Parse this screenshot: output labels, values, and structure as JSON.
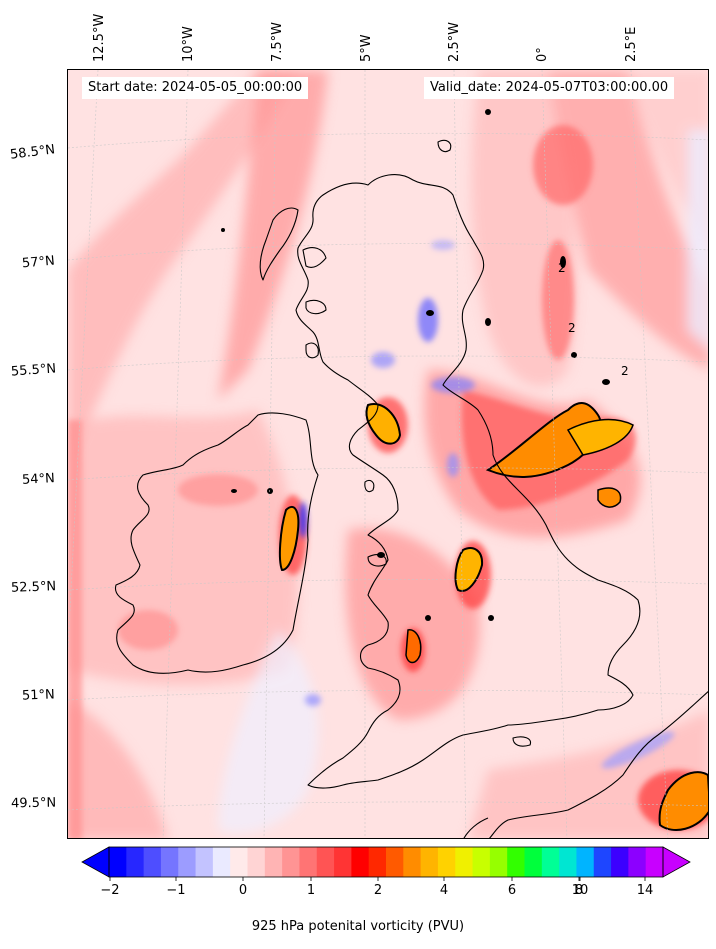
{
  "header": {
    "start_date": "Start date: 2024-05-05_00:00:00",
    "valid_date": "Valid_date: 2024-05-07T03:00:00.00"
  },
  "axes": {
    "lon_labels": [
      "12.5°W",
      "10°W",
      "7.5°W",
      "5°W",
      "2.5°W",
      "0°",
      "2.5°E"
    ],
    "lat_labels": [
      "58.5°N",
      "57°N",
      "55.5°N",
      "54°N",
      "52.5°N",
      "51°N",
      "49.5°N"
    ]
  },
  "contour_labels": [
    "2",
    "2",
    "2"
  ],
  "colorbar": {
    "label": "925 hPa potenital vorticity (PVU)",
    "ticks": [
      "−2",
      "−1",
      "0",
      "1",
      "2",
      "4",
      "6",
      "8",
      "10",
      "14"
    ],
    "colors": [
      "#0000ff",
      "#2727ff",
      "#4e4eff",
      "#7575ff",
      "#9c9cff",
      "#c3c3ff",
      "#eaeaff",
      "#ffeaea",
      "#ffd4d4",
      "#ffb4b4",
      "#ff9494",
      "#ff7474",
      "#ff5454",
      "#ff3434",
      "#ff0000",
      "#ff2800",
      "#ff5a00",
      "#ff8c00",
      "#ffb400",
      "#ffd200",
      "#f0f000",
      "#c8ff00",
      "#96ff00",
      "#32ff00",
      "#00ff3c",
      "#00ff96",
      "#00e6d2",
      "#00b4ff",
      "#1e46ff",
      "#3c00ff",
      "#8c00ff",
      "#c800ff"
    ]
  },
  "colors": {
    "background_pv": "#ffe0e0",
    "coastline": "#000000"
  }
}
